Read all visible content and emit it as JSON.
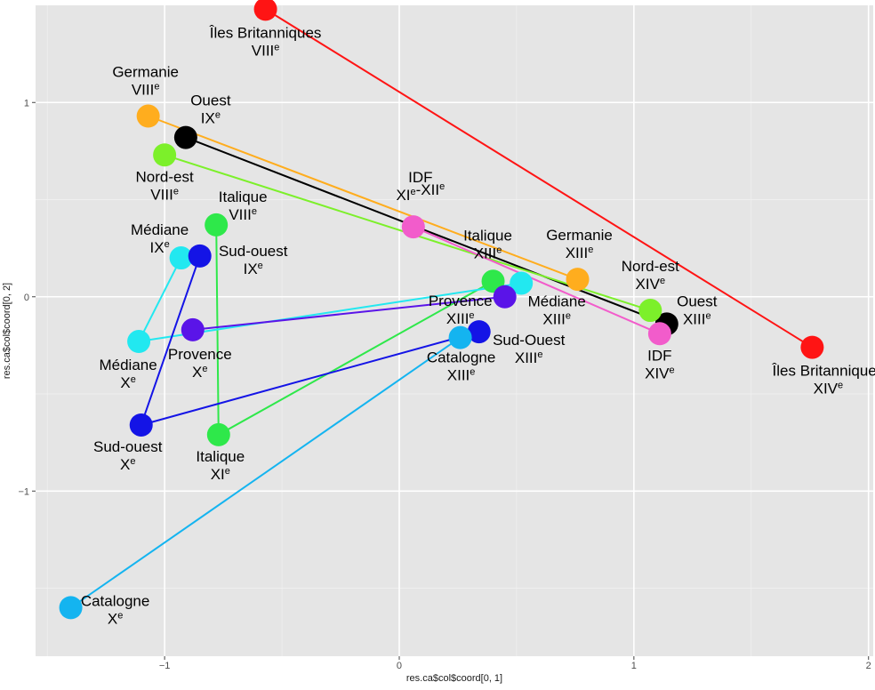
{
  "chart_data": {
    "type": "scatter",
    "title": "",
    "xlabel": "res.ca$col$coord[0, 1]",
    "ylabel": "res.ca$col$coord[0, 2]",
    "xlim": [
      -1.55,
      2.02
    ],
    "ylim": [
      -1.85,
      1.5
    ],
    "x_ticks": [
      -1,
      0,
      1,
      2
    ],
    "y_ticks": [
      -1,
      0,
      1
    ],
    "x_tick_labels": [
      "−1",
      "0",
      "1",
      "2"
    ],
    "y_tick_labels": [
      "−1",
      "0",
      "1"
    ],
    "grid": true,
    "legend": "none",
    "panel_background": "#e5e5e5",
    "grid_color": "#ffffff",
    "series": [
      {
        "name": "Îles Britanniques",
        "color": "#ff1414",
        "points": [
          {
            "x": -0.57,
            "y": 1.48,
            "label": "Îles Britanniques",
            "period": "VIII",
            "sup": "e"
          },
          {
            "x": 1.76,
            "y": -0.26,
            "label": "Îles Britanniques",
            "period": "XIV",
            "sup": "e"
          }
        ]
      },
      {
        "name": "Germanie",
        "color": "#ffad1e",
        "points": [
          {
            "x": -1.07,
            "y": 0.93,
            "label": "Germanie",
            "period": "VIII",
            "sup": "e"
          },
          {
            "x": 0.76,
            "y": 0.09,
            "label": "Germanie",
            "period": "XIII",
            "sup": "e"
          }
        ]
      },
      {
        "name": "Ouest",
        "color": "#000000",
        "points": [
          {
            "x": -0.91,
            "y": 0.82,
            "label": "Ouest",
            "period": "IX",
            "sup": "e"
          },
          {
            "x": 1.14,
            "y": -0.14,
            "label": "Ouest",
            "period": "XIII",
            "sup": "e"
          }
        ]
      },
      {
        "name": "Nord-est",
        "color": "#7cf02a",
        "points": [
          {
            "x": -1.0,
            "y": 0.73,
            "label": "Nord-est",
            "period": "VIII",
            "sup": "e"
          },
          {
            "x": 1.07,
            "y": -0.07,
            "label": "Nord-est",
            "period": "XIV",
            "sup": "e"
          }
        ]
      },
      {
        "name": "IDF",
        "color": "#f25ccb",
        "points": [
          {
            "x": 0.06,
            "y": 0.36,
            "label": "IDF",
            "period": "XI-XII",
            "sup": "e"
          },
          {
            "x": 1.11,
            "y": -0.19,
            "label": "IDF",
            "period": "XIV",
            "sup": "e"
          }
        ]
      },
      {
        "name": "Italique",
        "color": "#2ee84a",
        "points": [
          {
            "x": -0.78,
            "y": 0.37,
            "label": "Italique",
            "period": "VIII",
            "sup": "e"
          },
          {
            "x": -0.77,
            "y": -0.71,
            "label": "Italique",
            "period": "XI",
            "sup": "e"
          },
          {
            "x": 0.4,
            "y": 0.08,
            "label": "Italique",
            "period": "XIII",
            "sup": "e"
          }
        ]
      },
      {
        "name": "Médiane",
        "color": "#22e8f0",
        "points": [
          {
            "x": -0.93,
            "y": 0.2,
            "label": "Médiane",
            "period": "IX",
            "sup": "e"
          },
          {
            "x": -1.11,
            "y": -0.23,
            "label": "Médiane",
            "period": "X",
            "sup": "e"
          },
          {
            "x": 0.52,
            "y": 0.07,
            "label": "Médiane",
            "period": "XIII",
            "sup": "e"
          }
        ]
      },
      {
        "name": "Sud-ouest",
        "color": "#1414e6",
        "points": [
          {
            "x": -0.85,
            "y": 0.21,
            "label": "Sud-ouest",
            "period": "IX",
            "sup": "e"
          },
          {
            "x": -1.1,
            "y": -0.66,
            "label": "Sud-ouest",
            "period": "X",
            "sup": "e"
          },
          {
            "x": 0.34,
            "y": -0.18,
            "label": "Sud-Ouest",
            "period": "XIII",
            "sup": "e"
          }
        ]
      },
      {
        "name": "Provence",
        "color": "#5a14e8",
        "points": [
          {
            "x": -0.88,
            "y": -0.17,
            "label": "Provence",
            "period": "X",
            "sup": "e"
          },
          {
            "x": 0.45,
            "y": -0.0,
            "label": "Provence",
            "period": "XIII",
            "sup": "e"
          }
        ]
      },
      {
        "name": "Catalogne",
        "color": "#14b4f0",
        "points": [
          {
            "x": -1.4,
            "y": -1.6,
            "label": "Catalogne",
            "period": "X",
            "sup": "e"
          },
          {
            "x": 0.26,
            "y": -0.21,
            "label": "Catalogne",
            "period": "XIII",
            "sup": "e"
          }
        ]
      }
    ]
  }
}
